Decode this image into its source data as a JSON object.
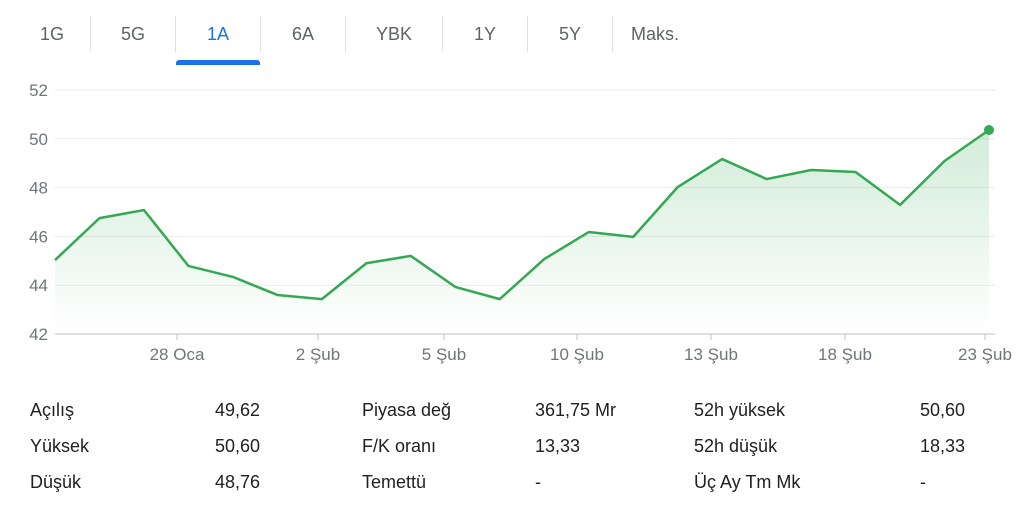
{
  "tabs": [
    {
      "label": "1G"
    },
    {
      "label": "5G"
    },
    {
      "label": "1A",
      "active": true
    },
    {
      "label": "6A"
    },
    {
      "label": "YBK"
    },
    {
      "label": "1Y"
    },
    {
      "label": "5Y"
    },
    {
      "label": "Maks."
    }
  ],
  "chart_data": {
    "type": "area",
    "ylim": [
      42,
      52
    ],
    "yticks": [
      "52",
      "50",
      "48",
      "46",
      "44",
      "42"
    ],
    "xticks": [
      "28 Oca",
      "2 Şub",
      "5 Şub",
      "10 Şub",
      "13 Şub",
      "18 Şub",
      "23 Şub"
    ],
    "grid": true,
    "color": "#34a853",
    "series": [
      {
        "values": [
          45.03,
          46.75,
          47.08,
          44.79,
          44.34,
          43.6,
          43.43,
          44.9,
          45.2,
          43.93,
          43.43,
          45.07,
          46.18,
          45.98,
          48.02,
          49.17,
          48.35,
          48.72,
          48.64,
          47.29,
          49.09,
          50.36
        ]
      }
    ]
  },
  "stats": [
    [
      {
        "label": "Açılış",
        "value": "49,62"
      },
      {
        "label": "Piyasa değ",
        "value": "361,75 Mr"
      },
      {
        "label": "52h yüksek",
        "value": "50,60"
      }
    ],
    [
      {
        "label": "Yüksek",
        "value": "50,60"
      },
      {
        "label": "F/K oranı",
        "value": "13,33"
      },
      {
        "label": "52h düşük",
        "value": "18,33"
      }
    ],
    [
      {
        "label": "Düşük",
        "value": "48,76"
      },
      {
        "label": "Temettü",
        "value": "-"
      },
      {
        "label": "Üç Ay Tm Mk",
        "value": "-"
      }
    ]
  ]
}
